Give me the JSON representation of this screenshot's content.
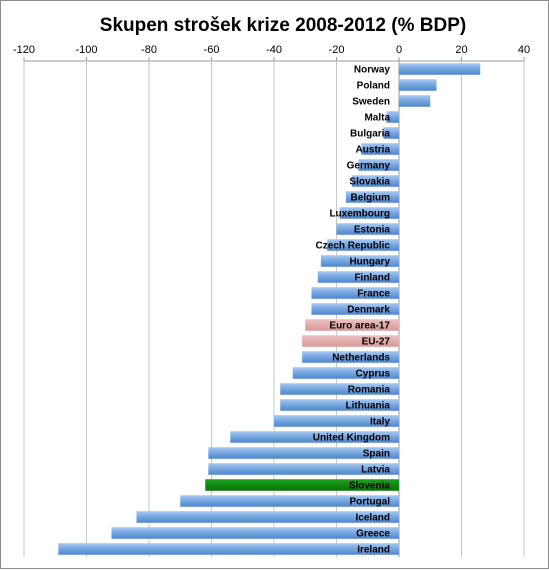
{
  "chart_data": {
    "type": "bar",
    "orientation": "horizontal",
    "title": "Skupen strošek krize 2008-2012 (% BDP)",
    "xlabel": "",
    "ylabel": "",
    "xlim": [
      -120,
      40
    ],
    "xticks": [
      -120,
      -100,
      -80,
      -60,
      -40,
      -20,
      0,
      20,
      40
    ],
    "x_axis_position": "top",
    "grid": true,
    "legend": "none",
    "colors": {
      "default": "#6f9fd8",
      "highlight_area": "#e3aaa9",
      "highlight_country": "#0a8a0a"
    },
    "categories": [
      "Norway",
      "Poland",
      "Sweden",
      "Malta",
      "Bulgaria",
      "Austria",
      "Germany",
      "Slovakia",
      "Belgium",
      "Luxembourg",
      "Estonia",
      "Czech Republic",
      "Hungary",
      "Finland",
      "France",
      "Denmark",
      "Euro area-17",
      "EU-27",
      "Netherlands",
      "Cyprus",
      "Romania",
      "Lithuania",
      "Italy",
      "United Kingdom",
      "Spain",
      "Latvia",
      "Slovenia",
      "Portugal",
      "Iceland",
      "Greece",
      "Ireland"
    ],
    "values": [
      26,
      12,
      10,
      -4,
      -5,
      -12,
      -13,
      -15,
      -17,
      -19,
      -20,
      -23,
      -25,
      -26,
      -28,
      -28,
      -30,
      -31,
      -31,
      -34,
      -38,
      -38,
      -40,
      -54,
      -61,
      -61,
      -62,
      -70,
      -84,
      -92,
      -109
    ],
    "bar_styles": [
      "default",
      "default",
      "default",
      "default",
      "default",
      "default",
      "default",
      "default",
      "default",
      "default",
      "default",
      "default",
      "default",
      "default",
      "default",
      "default",
      "highlight_area",
      "highlight_area",
      "default",
      "default",
      "default",
      "default",
      "default",
      "default",
      "default",
      "default",
      "highlight_country",
      "default",
      "default",
      "default",
      "default"
    ]
  }
}
